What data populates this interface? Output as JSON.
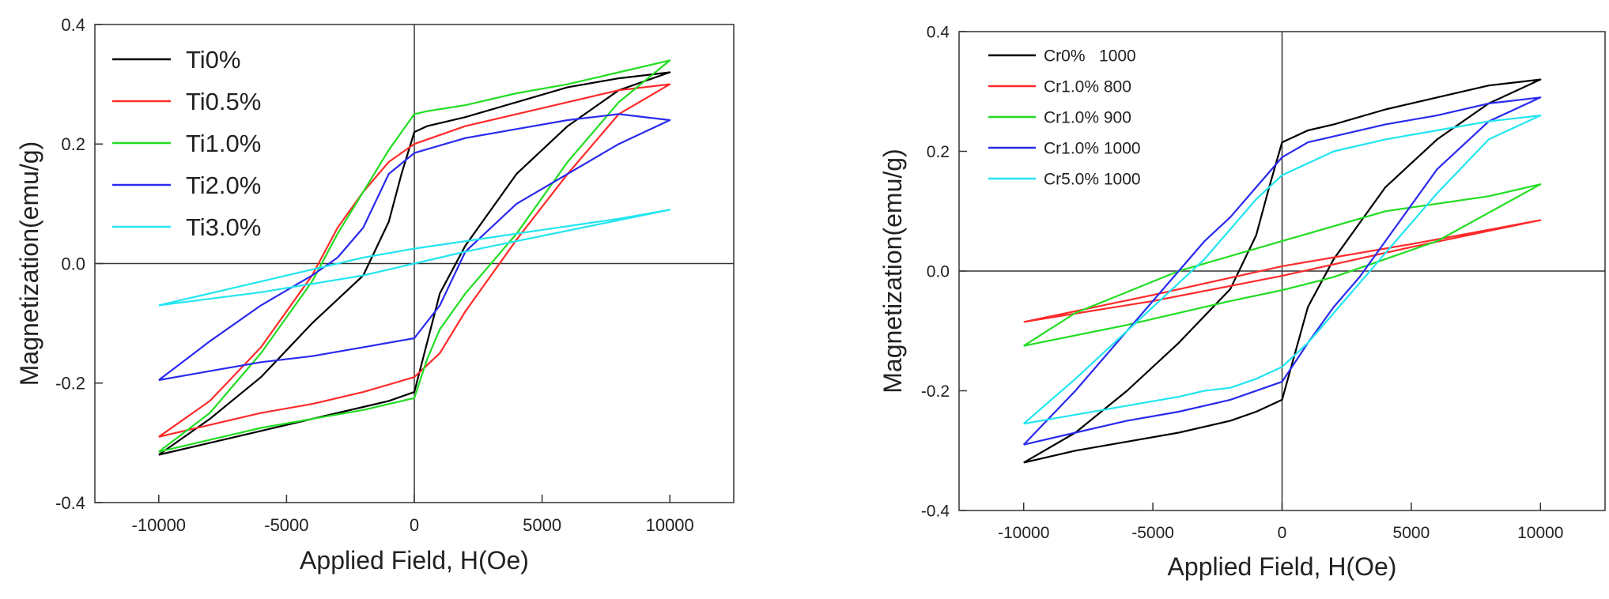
{
  "chart_data": [
    {
      "type": "line",
      "xlabel": "Applied Field, H(Oe)",
      "ylabel": "Magnetization(emu/g)",
      "xlim": [
        -12500,
        12500
      ],
      "ylim": [
        -0.4,
        0.4
      ],
      "xticks": [
        -10000,
        -5000,
        0,
        5000,
        10000
      ],
      "xtick_labels": [
        "-10000",
        "-5000",
        "0",
        "5000",
        "10000"
      ],
      "yticks": [
        -0.4,
        -0.2,
        0.0,
        0.2,
        0.4
      ],
      "ytick_labels": [
        "-0.4",
        "-0.2",
        "0.0",
        "0.2",
        "0.4"
      ],
      "zero_lines": true,
      "grid": false,
      "legend_position": "top-left",
      "series": [
        {
          "name": "Ti0%",
          "color": "#000000",
          "x": [
            -10000,
            -8000,
            -6000,
            -4000,
            -2000,
            -1000,
            0,
            1000,
            2000,
            3000,
            4000,
            6000,
            8000,
            10000,
            8000,
            6000,
            4000,
            2000,
            1000,
            500,
            0,
            -500,
            -1000,
            -2000,
            -4000,
            -6000,
            -8000,
            -10000
          ],
          "y": [
            -0.32,
            -0.3,
            -0.28,
            -0.26,
            -0.24,
            -0.23,
            -0.215,
            -0.05,
            0.03,
            0.09,
            0.15,
            0.23,
            0.29,
            0.32,
            0.31,
            0.295,
            0.27,
            0.245,
            0.235,
            0.23,
            0.22,
            0.15,
            0.07,
            -0.02,
            -0.1,
            -0.19,
            -0.26,
            -0.32
          ]
        },
        {
          "name": "Ti0.5%",
          "color": "#ff2a2a",
          "x": [
            -10000,
            -8000,
            -6000,
            -4000,
            -2000,
            0,
            1000,
            2000,
            3000,
            4000,
            6000,
            8000,
            10000,
            8000,
            6000,
            4000,
            2000,
            0,
            -1000,
            -2000,
            -3000,
            -4000,
            -6000,
            -8000,
            -10000
          ],
          "y": [
            -0.29,
            -0.27,
            -0.25,
            -0.235,
            -0.215,
            -0.19,
            -0.15,
            -0.08,
            -0.02,
            0.04,
            0.15,
            0.25,
            0.3,
            0.29,
            0.27,
            0.25,
            0.23,
            0.2,
            0.17,
            0.12,
            0.06,
            -0.02,
            -0.14,
            -0.23,
            -0.29
          ]
        },
        {
          "name": "Ti1.0%",
          "color": "#22dd22",
          "x": [
            -10000,
            -8000,
            -6000,
            -4000,
            -2000,
            0,
            500,
            1000,
            2000,
            3000,
            4000,
            6000,
            8000,
            10000,
            8000,
            6000,
            4000,
            2000,
            500,
            0,
            -1000,
            -2000,
            -3000,
            -4000,
            -6000,
            -8000,
            -10000
          ],
          "y": [
            -0.315,
            -0.295,
            -0.275,
            -0.26,
            -0.245,
            -0.225,
            -0.16,
            -0.11,
            -0.05,
            0.0,
            0.05,
            0.17,
            0.27,
            0.34,
            0.32,
            0.3,
            0.285,
            0.265,
            0.255,
            0.25,
            0.19,
            0.12,
            0.05,
            -0.03,
            -0.15,
            -0.25,
            -0.315
          ]
        },
        {
          "name": "Ti2.0%",
          "color": "#2a2aee",
          "x": [
            -10000,
            -8000,
            -6000,
            -4000,
            -2000,
            0,
            1000,
            2000,
            4000,
            6000,
            8000,
            10000,
            8000,
            6000,
            4000,
            2000,
            0,
            -1000,
            -2000,
            -3000,
            -4000,
            -6000,
            -8000,
            -10000
          ],
          "y": [
            -0.195,
            -0.18,
            -0.165,
            -0.155,
            -0.14,
            -0.125,
            -0.07,
            0.02,
            0.1,
            0.15,
            0.2,
            0.24,
            0.25,
            0.24,
            0.225,
            0.21,
            0.185,
            0.15,
            0.06,
            0.01,
            -0.02,
            -0.07,
            -0.13,
            -0.195
          ]
        },
        {
          "name": "Ti3.0%",
          "color": "#22e5f0",
          "x": [
            -10000,
            -6000,
            -2000,
            0,
            2000,
            6000,
            10000,
            8000,
            4000,
            0,
            -2000,
            -6000,
            -10000
          ],
          "y": [
            -0.07,
            -0.048,
            -0.02,
            0.0,
            0.02,
            0.055,
            0.09,
            0.075,
            0.05,
            0.025,
            0.01,
            -0.03,
            -0.07
          ]
        }
      ]
    },
    {
      "type": "line",
      "xlabel": "Applied Field, H(Oe)",
      "ylabel": "Magnetization(emu/g)",
      "xlim": [
        -12500,
        12500
      ],
      "ylim": [
        -0.4,
        0.4
      ],
      "xticks": [
        -10000,
        -5000,
        0,
        5000,
        10000
      ],
      "xtick_labels": [
        "-10000",
        "-5000",
        "0",
        "5000",
        "10000"
      ],
      "yticks": [
        -0.4,
        -0.2,
        0.0,
        0.2,
        0.4
      ],
      "ytick_labels": [
        "-0.4",
        "-0.2",
        "0.0",
        "0.2",
        "0.4"
      ],
      "zero_lines": true,
      "grid": false,
      "legend_position": "top-left",
      "series": [
        {
          "name": "Cr0%   1000",
          "color": "#000000",
          "x": [
            -10000,
            -8000,
            -6000,
            -4000,
            -2000,
            -1000,
            0,
            1000,
            2000,
            3000,
            4000,
            6000,
            8000,
            10000,
            8000,
            6000,
            4000,
            2000,
            1000,
            500,
            0,
            -500,
            -1000,
            -2000,
            -4000,
            -6000,
            -8000,
            -10000
          ],
          "y": [
            -0.32,
            -0.3,
            -0.285,
            -0.27,
            -0.25,
            -0.235,
            -0.215,
            -0.06,
            0.02,
            0.08,
            0.14,
            0.22,
            0.28,
            0.32,
            0.31,
            0.29,
            0.27,
            0.245,
            0.235,
            0.225,
            0.215,
            0.14,
            0.06,
            -0.03,
            -0.12,
            -0.2,
            -0.27,
            -0.32
          ]
        },
        {
          "name": "Cr1.0% 800",
          "color": "#ff2a2a",
          "x": [
            -10000,
            -5000,
            0,
            5000,
            10000,
            5000,
            0,
            -5000,
            -10000
          ],
          "y": [
            -0.085,
            -0.05,
            -0.008,
            0.04,
            0.085,
            0.045,
            0.008,
            -0.04,
            -0.085
          ]
        },
        {
          "name": "Cr1.0% 900",
          "color": "#22dd22",
          "x": [
            -10000,
            -6000,
            -2000,
            0,
            2000,
            6000,
            10000,
            8000,
            4000,
            0,
            -4000,
            -8000,
            -10000
          ],
          "y": [
            -0.125,
            -0.09,
            -0.05,
            -0.032,
            -0.01,
            0.05,
            0.145,
            0.125,
            0.1,
            0.05,
            0.0,
            -0.07,
            -0.125
          ]
        },
        {
          "name": "Cr1.0% 1000",
          "color": "#2a2aee",
          "x": [
            -10000,
            -8000,
            -6000,
            -4000,
            -2000,
            0,
            1000,
            2000,
            3000,
            4000,
            6000,
            8000,
            10000,
            8000,
            6000,
            4000,
            2000,
            1000,
            0,
            -1000,
            -2000,
            -3000,
            -4000,
            -6000,
            -8000,
            -10000
          ],
          "y": [
            -0.29,
            -0.27,
            -0.25,
            -0.235,
            -0.215,
            -0.185,
            -0.12,
            -0.06,
            -0.01,
            0.05,
            0.17,
            0.25,
            0.29,
            0.28,
            0.26,
            0.245,
            0.225,
            0.215,
            0.19,
            0.14,
            0.09,
            0.05,
            0.0,
            -0.1,
            -0.2,
            -0.29
          ]
        },
        {
          "name": "Cr5.0% 1000",
          "color": "#22e5f0",
          "x": [
            -10000,
            -8000,
            -6000,
            -4000,
            -3000,
            -2000,
            -1000,
            0,
            1000,
            2000,
            4000,
            6000,
            8000,
            10000,
            8000,
            6000,
            4000,
            2000,
            1000,
            0,
            -1000,
            -2000,
            -3000,
            -4000,
            -6000,
            -8000,
            -10000
          ],
          "y": [
            -0.255,
            -0.24,
            -0.225,
            -0.21,
            -0.2,
            -0.195,
            -0.18,
            -0.16,
            -0.12,
            -0.07,
            0.03,
            0.13,
            0.22,
            0.26,
            0.25,
            0.235,
            0.22,
            0.2,
            0.18,
            0.16,
            0.12,
            0.07,
            0.02,
            -0.02,
            -0.1,
            -0.18,
            -0.255
          ]
        }
      ]
    }
  ]
}
